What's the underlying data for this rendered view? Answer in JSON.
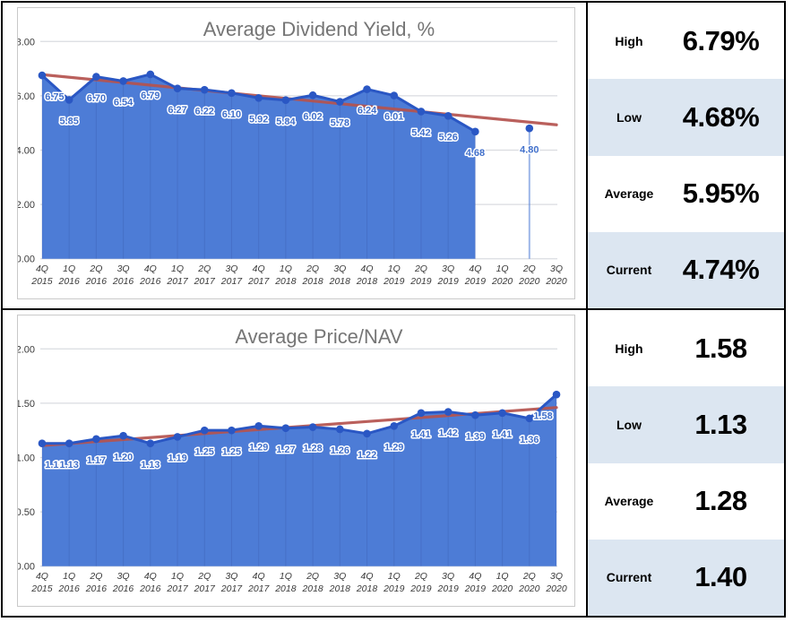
{
  "colors": {
    "area": "#4d7cd6",
    "line": "#2a57c4",
    "dot": "#2a57c4",
    "data_label": "#4170cb",
    "trend": "#b5534f",
    "grid": "#dadce0",
    "axis_text": "#3a3a3a",
    "title_text": "#757575",
    "alt_row_bg": "#dce6f1",
    "frame_border": "#c9c9c9",
    "outer_border": "#000000"
  },
  "chart_data": [
    {
      "type": "area",
      "title": "Average Dividend Yield, %",
      "categories": [
        "4Q 2015",
        "1Q 2016",
        "2Q 2016",
        "3Q 2016",
        "4Q 2016",
        "1Q 2017",
        "2Q 2017",
        "3Q 2017",
        "4Q 2017",
        "1Q 2018",
        "2Q 2018",
        "3Q 2018",
        "4Q 2018",
        "1Q 2019",
        "2Q 2019",
        "3Q 2019",
        "4Q 2019",
        "1Q 2020",
        "2Q 2020",
        "3Q 2020"
      ],
      "values": [
        6.75,
        5.85,
        6.7,
        6.54,
        6.79,
        6.27,
        6.22,
        6.1,
        5.92,
        5.84,
        6.02,
        5.78,
        6.24,
        6.01,
        5.42,
        5.26,
        4.68,
        null,
        4.8,
        null
      ],
      "ylim": [
        0,
        8
      ],
      "ytick_step": 2,
      "grid": "horizontal",
      "legend_position": "none",
      "trendline": {
        "start": 6.78,
        "end": 4.93
      }
    },
    {
      "type": "area",
      "title": "Average Price/NAV",
      "categories": [
        "4Q 2015",
        "1Q 2016",
        "2Q 2016",
        "3Q 2016",
        "4Q 2016",
        "1Q 2017",
        "2Q 2017",
        "3Q 2017",
        "4Q 2017",
        "1Q 2018",
        "2Q 2018",
        "3Q 2018",
        "4Q 2018",
        "1Q 2019",
        "2Q 2019",
        "3Q 2019",
        "4Q 2019",
        "1Q 2020",
        "2Q 2020",
        "3Q 2020"
      ],
      "values": [
        1.13,
        1.13,
        1.17,
        1.2,
        1.13,
        1.19,
        1.25,
        1.25,
        1.29,
        1.27,
        1.28,
        1.26,
        1.22,
        1.29,
        1.41,
        1.42,
        1.39,
        1.41,
        1.36,
        1.58
      ],
      "ylim": [
        0,
        2
      ],
      "ytick_step": 0.5,
      "grid": "horizontal",
      "legend_position": "none",
      "trendline": {
        "start": 1.11,
        "end": 1.46
      }
    }
  ],
  "stats_panels": [
    {
      "rows": [
        {
          "label": "High",
          "value": "6.79%"
        },
        {
          "label": "Low",
          "value": "4.68%"
        },
        {
          "label": "Average",
          "value": "5.95%"
        },
        {
          "label": "Current",
          "value": "4.74%"
        }
      ]
    },
    {
      "rows": [
        {
          "label": "High",
          "value": "1.58"
        },
        {
          "label": "Low",
          "value": "1.13"
        },
        {
          "label": "Average",
          "value": "1.28"
        },
        {
          "label": "Current",
          "value": "1.40"
        }
      ]
    }
  ]
}
